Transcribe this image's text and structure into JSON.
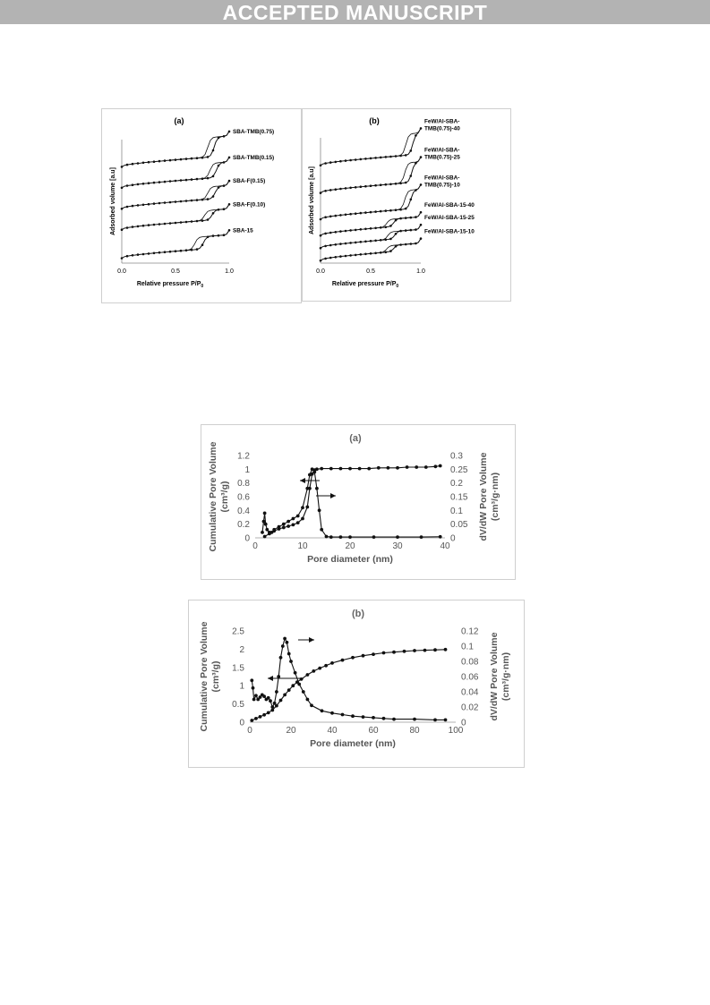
{
  "header": {
    "banner": "ACCEPTED MANUSCRIPT"
  },
  "chart_data": [
    {
      "type": "line",
      "panel_label": "(a)",
      "xlabel": "Relative pressure P/P",
      "xlabel_sub": "0",
      "ylabel": "Adsorbed volume [a.u]",
      "xlim": [
        0.0,
        1.0
      ],
      "xticks": [
        "0.0",
        "0.5",
        "1.0"
      ],
      "series": [
        {
          "name": "SBA-TMB(0.75)",
          "offset": 0.78,
          "step": 0.16,
          "p_ads": 0.86,
          "p_des": 0.8
        },
        {
          "name": "SBA-TMB(0.15)",
          "offset": 0.61,
          "step": 0.12,
          "p_ads": 0.88,
          "p_des": 0.82
        },
        {
          "name": "SBA-F(0.15)",
          "offset": 0.44,
          "step": 0.1,
          "p_ads": 0.87,
          "p_des": 0.8
        },
        {
          "name": "SBA-F(0.10)",
          "offset": 0.27,
          "step": 0.08,
          "p_ads": 0.84,
          "p_des": 0.77
        },
        {
          "name": "SBA-15",
          "offset": 0.04,
          "step": 0.1,
          "p_ads": 0.76,
          "p_des": 0.68
        }
      ]
    },
    {
      "type": "line",
      "panel_label": "(b)",
      "xlabel": "Relative pressure P/P",
      "xlabel_sub": "0",
      "ylabel": "Adsorbed volume [a.u]",
      "xlim": [
        0.0,
        1.0
      ],
      "xticks": [
        "0.0",
        "0.5",
        "1.0"
      ],
      "series": [
        {
          "name": "FeW/Al-SBA-TMB(0.75)-40",
          "offset": 0.78,
          "step": 0.17,
          "p_ads": 0.92,
          "p_des": 0.85
        },
        {
          "name": "FeW/Al-SBA-TMB(0.75)-25",
          "offset": 0.56,
          "step": 0.16,
          "p_ads": 0.91,
          "p_des": 0.84
        },
        {
          "name": "FeW/Al-SBA-TMB(0.75)-10",
          "offset": 0.35,
          "step": 0.15,
          "p_ads": 0.9,
          "p_des": 0.84
        },
        {
          "name": "FeW/Al-SBA-15-40",
          "offset": 0.22,
          "step": 0.06,
          "p_ads": 0.73,
          "p_des": 0.66
        },
        {
          "name": "FeW/Al-SBA-15-25",
          "offset": 0.12,
          "step": 0.06,
          "p_ads": 0.74,
          "p_des": 0.67
        },
        {
          "name": "FeW/Al-SBA-15-10",
          "offset": 0.02,
          "step": 0.05,
          "p_ads": 0.73,
          "p_des": 0.66
        }
      ]
    },
    {
      "type": "line",
      "panel_label": "(a)",
      "xlabel": "Pore diameter (nm)",
      "ylabel_left": "Cumulative Pore Volume (cm³/g)",
      "ylabel_left_lines": [
        "Cumulative Pore Volume",
        "(cm³/g)"
      ],
      "ylabel_right_lines": [
        "dV/dW Pore Volume",
        "(cm³/g·nm)"
      ],
      "xlim": [
        0,
        40
      ],
      "ylim_left": [
        0,
        1.2
      ],
      "ylim_right": [
        0,
        0.3
      ],
      "xticks": [
        "0",
        "10",
        "20",
        "30",
        "40"
      ],
      "yticks_left": [
        "0",
        "0.2",
        "0.4",
        "0.6",
        "0.8",
        "1",
        "1.2"
      ],
      "yticks_right": [
        "0",
        "0.05",
        "0.1",
        "0.15",
        "0.2",
        "0.25",
        "0.3"
      ],
      "series": [
        {
          "axis": "left",
          "x": [
            2.0,
            3.0,
            4.0,
            5.0,
            6.0,
            7.0,
            8.0,
            9.0,
            10.0,
            11.0,
            11.5,
            12.0,
            12.5,
            13.0,
            14.0,
            16.0,
            18.0,
            20.0,
            22.0,
            24.0,
            26.0,
            28.0,
            30.0,
            32.0,
            34.0,
            36.0,
            38.0,
            39.0
          ],
          "y": [
            0.02,
            0.06,
            0.1,
            0.13,
            0.15,
            0.17,
            0.19,
            0.22,
            0.28,
            0.45,
            0.72,
            0.93,
            0.99,
            1.0,
            1.01,
            1.01,
            1.01,
            1.01,
            1.01,
            1.01,
            1.02,
            1.02,
            1.02,
            1.03,
            1.03,
            1.03,
            1.04,
            1.05
          ]
        },
        {
          "axis": "right",
          "x": [
            1.5,
            1.8,
            2.0,
            2.2,
            2.5,
            3.0,
            3.5,
            4.0,
            5.0,
            6.0,
            7.0,
            8.0,
            9.0,
            10.0,
            11.0,
            11.5,
            12.0,
            12.5,
            13.0,
            13.5,
            14.0,
            15.0,
            16.0,
            18.0,
            20.0,
            25.0,
            30.0,
            35.0,
            39.0
          ],
          "y": [
            0.02,
            0.06,
            0.09,
            0.05,
            0.03,
            0.02,
            0.02,
            0.03,
            0.04,
            0.05,
            0.06,
            0.07,
            0.08,
            0.11,
            0.18,
            0.23,
            0.25,
            0.24,
            0.18,
            0.1,
            0.03,
            0.005,
            0.003,
            0.003,
            0.003,
            0.003,
            0.003,
            0.003,
            0.004
          ]
        }
      ],
      "annotations": [
        "arrow pointing left to cumulative curve",
        "arrow pointing right to dV/dW curve"
      ]
    },
    {
      "type": "line",
      "panel_label": "(b)",
      "xlabel": "Pore diameter (nm)",
      "ylabel_left": "Cumulative Pore Volume (cm³/g)",
      "ylabel_left_lines": [
        "Cumulative Pore Volume",
        "(cm³/g)"
      ],
      "ylabel_right_lines": [
        "dV/dW Pore Volume",
        "(cm³/g·nm)"
      ],
      "xlim": [
        0,
        100
      ],
      "ylim_left": [
        0,
        2.5
      ],
      "ylim_right": [
        0,
        0.12
      ],
      "xticks": [
        "0",
        "20",
        "40",
        "60",
        "80",
        "100"
      ],
      "yticks_left": [
        "0",
        "0.5",
        "1",
        "1.5",
        "2",
        "2.5"
      ],
      "yticks_right": [
        "0",
        "0.02",
        "0.04",
        "0.06",
        "0.08",
        "0.1",
        "0.12"
      ],
      "series": [
        {
          "axis": "left",
          "x": [
            1,
            3,
            5,
            7,
            9,
            11,
            13,
            15,
            17,
            19,
            21,
            23,
            25,
            28,
            31,
            34,
            37,
            40,
            45,
            50,
            55,
            60,
            65,
            70,
            75,
            80,
            85,
            90,
            95
          ],
          "y": [
            0.05,
            0.1,
            0.15,
            0.2,
            0.26,
            0.33,
            0.45,
            0.6,
            0.75,
            0.88,
            1.0,
            1.1,
            1.18,
            1.3,
            1.4,
            1.48,
            1.55,
            1.62,
            1.7,
            1.77,
            1.82,
            1.86,
            1.9,
            1.92,
            1.94,
            1.96,
            1.97,
            1.98,
            1.99
          ]
        },
        {
          "axis": "right",
          "x": [
            1,
            1.5,
            2,
            3,
            4,
            5,
            6,
            7,
            8,
            9,
            10,
            11,
            12,
            13,
            14,
            15,
            16,
            17,
            18,
            19,
            20,
            22,
            24,
            26,
            28,
            30,
            35,
            40,
            45,
            50,
            55,
            60,
            65,
            70,
            80,
            90,
            95
          ],
          "y": [
            0.055,
            0.045,
            0.03,
            0.035,
            0.03,
            0.033,
            0.036,
            0.034,
            0.03,
            0.032,
            0.028,
            0.02,
            0.025,
            0.04,
            0.06,
            0.085,
            0.1,
            0.11,
            0.105,
            0.09,
            0.08,
            0.065,
            0.05,
            0.04,
            0.03,
            0.022,
            0.015,
            0.012,
            0.01,
            0.008,
            0.007,
            0.006,
            0.005,
            0.004,
            0.004,
            0.003,
            0.003
          ]
        }
      ],
      "annotations": [
        "arrow pointing left to cumulative curve",
        "arrow pointing right to dV/dW curve"
      ]
    }
  ]
}
